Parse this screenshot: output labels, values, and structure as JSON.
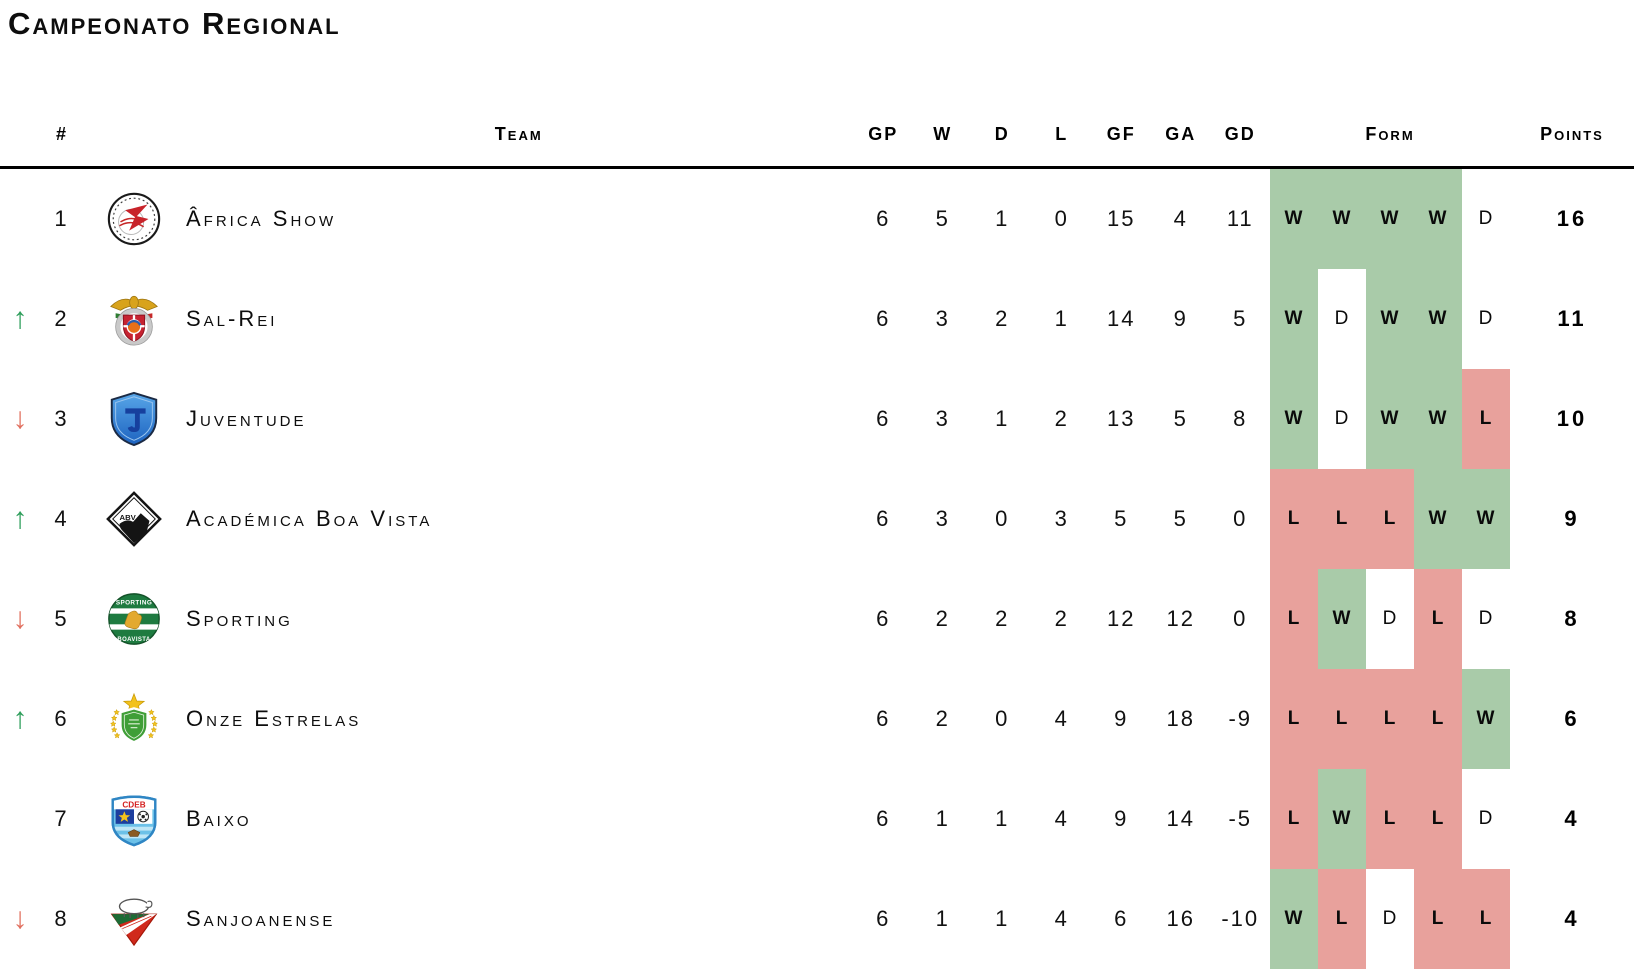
{
  "title": "Campeonato Regional",
  "colors": {
    "form_win_bg": "#a9cba9",
    "form_loss_bg": "#e8a19c",
    "form_draw_bg": "#ffffff",
    "up_arrow": "#2e9e5b",
    "down_arrow": "#e1705f",
    "header_rule": "#000000"
  },
  "icons": {
    "up": "↑",
    "down": "↓"
  },
  "columns": {
    "rank": "#",
    "team": "Team",
    "gp": "GP",
    "w": "W",
    "d": "D",
    "l": "L",
    "gf": "GF",
    "ga": "GA",
    "gd": "GD",
    "form": "Form",
    "points": "Points"
  },
  "rows": [
    {
      "rank": "1",
      "movement": "none",
      "team": "Âfrica Show",
      "logo": "africa-show",
      "gp": "6",
      "w": "5",
      "d": "1",
      "l": "0",
      "gf": "15",
      "ga": "4",
      "gd": "11",
      "form": [
        "W",
        "W",
        "W",
        "W",
        "D"
      ],
      "points": "16"
    },
    {
      "rank": "2",
      "movement": "up",
      "team": "Sal-Rei",
      "logo": "sal-rei",
      "gp": "6",
      "w": "3",
      "d": "2",
      "l": "1",
      "gf": "14",
      "ga": "9",
      "gd": "5",
      "form": [
        "W",
        "D",
        "W",
        "W",
        "D"
      ],
      "points": "11"
    },
    {
      "rank": "3",
      "movement": "down",
      "team": "Juventude",
      "logo": "juventude",
      "gp": "6",
      "w": "3",
      "d": "1",
      "l": "2",
      "gf": "13",
      "ga": "5",
      "gd": "8",
      "form": [
        "W",
        "D",
        "W",
        "W",
        "L"
      ],
      "points": "10"
    },
    {
      "rank": "4",
      "movement": "up",
      "team": "Académica Boa Vista",
      "logo": "academica",
      "gp": "6",
      "w": "3",
      "d": "0",
      "l": "3",
      "gf": "5",
      "ga": "5",
      "gd": "0",
      "form": [
        "L",
        "L",
        "L",
        "W",
        "W"
      ],
      "points": "9"
    },
    {
      "rank": "5",
      "movement": "down",
      "team": "Sporting",
      "logo": "sporting",
      "gp": "6",
      "w": "2",
      "d": "2",
      "l": "2",
      "gf": "12",
      "ga": "12",
      "gd": "0",
      "form": [
        "L",
        "W",
        "D",
        "L",
        "D"
      ],
      "points": "8"
    },
    {
      "rank": "6",
      "movement": "up",
      "team": "Onze Estrelas",
      "logo": "onze",
      "gp": "6",
      "w": "2",
      "d": "0",
      "l": "4",
      "gf": "9",
      "ga": "18",
      "gd": "-9",
      "form": [
        "L",
        "L",
        "L",
        "L",
        "W"
      ],
      "points": "6"
    },
    {
      "rank": "7",
      "movement": "none",
      "team": "Baixo",
      "logo": "baixo",
      "gp": "6",
      "w": "1",
      "d": "1",
      "l": "4",
      "gf": "9",
      "ga": "14",
      "gd": "-5",
      "form": [
        "L",
        "W",
        "L",
        "L",
        "D"
      ],
      "points": "4"
    },
    {
      "rank": "8",
      "movement": "down",
      "team": "Sanjoanense",
      "logo": "sanjoanense",
      "gp": "6",
      "w": "1",
      "d": "1",
      "l": "4",
      "gf": "6",
      "ga": "16",
      "gd": "-10",
      "form": [
        "W",
        "L",
        "D",
        "L",
        "L"
      ],
      "points": "4"
    }
  ]
}
